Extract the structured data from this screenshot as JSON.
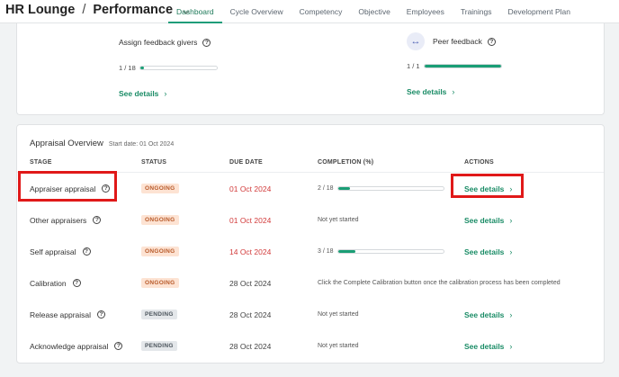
{
  "header": {
    "breadcrumb": [
      "HR Lounge",
      "Performance"
    ],
    "separator": "/",
    "tabs": [
      {
        "label": "Dashboard",
        "active": true
      },
      {
        "label": "Cycle Overview",
        "active": false
      },
      {
        "label": "Competency",
        "active": false
      },
      {
        "label": "Objective",
        "active": false
      },
      {
        "label": "Employees",
        "active": false
      },
      {
        "label": "Trainings",
        "active": false
      },
      {
        "label": "Development Plan",
        "active": false
      }
    ]
  },
  "feedback": {
    "assign": {
      "title": "Assign feedback givers",
      "progress_text": "1 / 18",
      "done": 1,
      "total": 18,
      "link": "See details"
    },
    "peer": {
      "title": "Peer feedback",
      "icon": "arrows-horizontal-icon",
      "progress_text": "1 / 1",
      "done": 1,
      "total": 1,
      "link": "See details"
    }
  },
  "appraisal": {
    "title": "Appraisal Overview",
    "start_date": "Start date: 01 Oct 2024",
    "columns": [
      "STAGE",
      "STATUS",
      "DUE DATE",
      "COMPLETION (%)",
      "ACTIONS"
    ],
    "rows": [
      {
        "stage": "Appraiser appraisal",
        "status": "ONGOING",
        "due": "01 Oct 2024",
        "overdue": true,
        "completion": {
          "type": "bar",
          "text": "2 / 18",
          "done": 2,
          "total": 18
        },
        "action": "See details",
        "highlighted": true
      },
      {
        "stage": "Other appraisers",
        "status": "ONGOING",
        "due": "01 Oct 2024",
        "overdue": true,
        "completion": {
          "type": "text",
          "text": "Not yet started"
        },
        "action": "See details",
        "highlighted": false
      },
      {
        "stage": "Self appraisal",
        "status": "ONGOING",
        "due": "14 Oct 2024",
        "overdue": true,
        "completion": {
          "type": "bar",
          "text": "3 / 18",
          "done": 3,
          "total": 18
        },
        "action": "See details",
        "highlighted": false
      },
      {
        "stage": "Calibration",
        "status": "ONGOING",
        "due": "28 Oct 2024",
        "overdue": false,
        "completion": {
          "type": "text",
          "text": "Click the Complete Calibration button once the calibration process has been completed"
        },
        "action": "",
        "highlighted": false
      },
      {
        "stage": "Release appraisal",
        "status": "PENDING",
        "due": "28 Oct 2024",
        "overdue": false,
        "completion": {
          "type": "text",
          "text": "Not yet started"
        },
        "action": "See details",
        "highlighted": false
      },
      {
        "stage": "Acknowledge appraisal",
        "status": "PENDING",
        "due": "28 Oct 2024",
        "overdue": false,
        "completion": {
          "type": "text",
          "text": "Not yet started"
        },
        "action": "See details",
        "highlighted": false
      }
    ]
  },
  "colors": {
    "accent": "#1a9e75",
    "overdue": "#d23b3b",
    "highlight": "#e01919"
  }
}
